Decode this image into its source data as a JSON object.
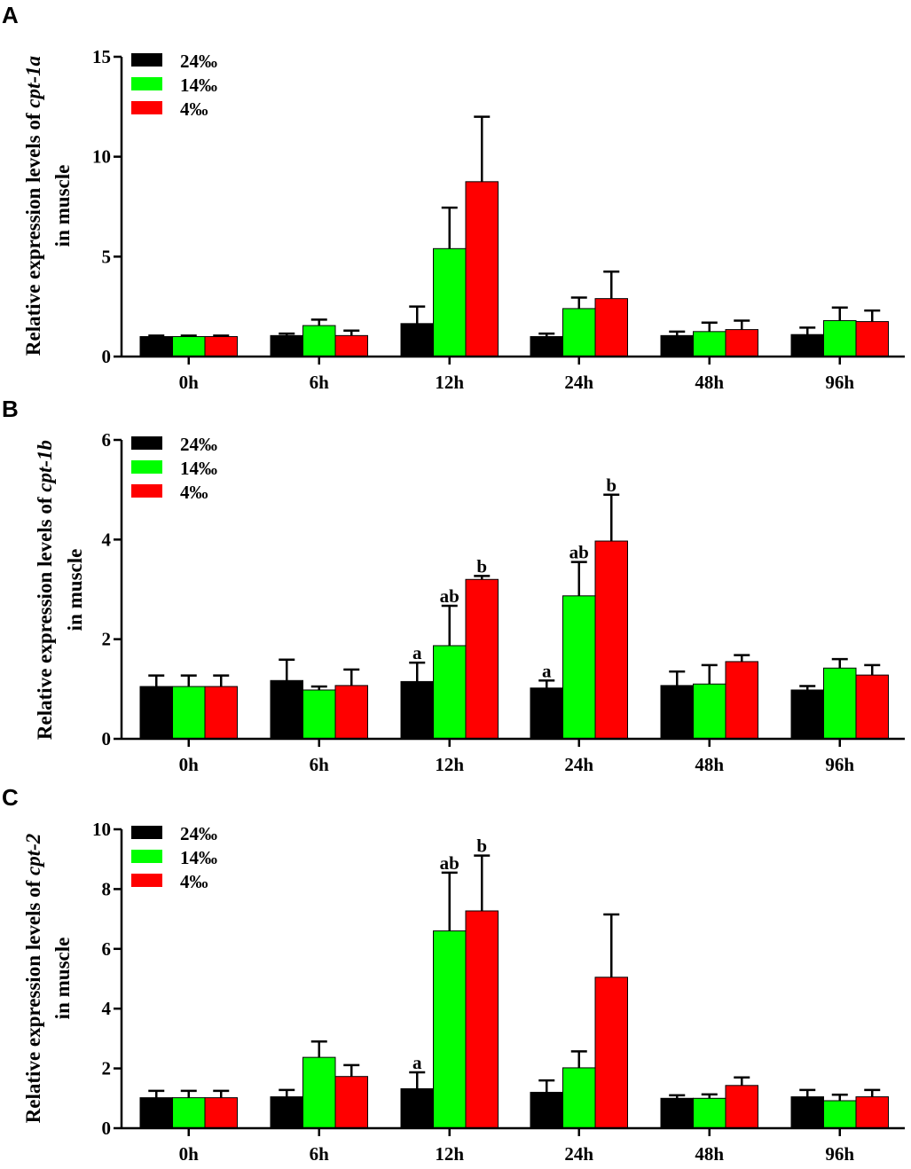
{
  "colors": {
    "24%o": "#000000",
    "14%o": "#00ff00",
    "4%o": "#ff0000",
    "axis": "#000000"
  },
  "chart_data": [
    {
      "panel": "A",
      "type": "bar",
      "ylabel_prefix": "Relative expression levels of ",
      "gene": "cpt-1a",
      "ylabel_line2": "in muscle",
      "ylim": [
        0,
        15
      ],
      "yticks": [
        0,
        5,
        10,
        15
      ],
      "categories": [
        "0h",
        "6h",
        "12h",
        "24h",
        "48h",
        "96h"
      ],
      "legend_position": "top-left",
      "series": [
        {
          "name": "24‰",
          "color": "#000000",
          "values": [
            1.0,
            1.05,
            1.65,
            1.0,
            1.05,
            1.1
          ],
          "errors": [
            0.05,
            0.1,
            0.85,
            0.15,
            0.2,
            0.35
          ],
          "labels": [
            "",
            "",
            "",
            "",
            "",
            ""
          ]
        },
        {
          "name": "14‰",
          "color": "#00ff00",
          "values": [
            1.0,
            1.55,
            5.4,
            2.4,
            1.25,
            1.8
          ],
          "errors": [
            0.05,
            0.3,
            2.05,
            0.55,
            0.45,
            0.65
          ],
          "labels": [
            "",
            "",
            "",
            "",
            "",
            ""
          ]
        },
        {
          "name": "4‰",
          "color": "#ff0000",
          "values": [
            1.0,
            1.05,
            8.75,
            2.9,
            1.35,
            1.75
          ],
          "errors": [
            0.05,
            0.25,
            3.25,
            1.35,
            0.45,
            0.55
          ],
          "labels": [
            "",
            "",
            "",
            "",
            "",
            ""
          ]
        }
      ]
    },
    {
      "panel": "B",
      "type": "bar",
      "ylabel_prefix": "Relative expression levels of ",
      "gene": "cpt-1b",
      "ylabel_line2": "in muscle",
      "ylim": [
        0,
        6
      ],
      "yticks": [
        0,
        2,
        4,
        6
      ],
      "categories": [
        "0h",
        "6h",
        "12h",
        "24h",
        "48h",
        "96h"
      ],
      "legend_position": "top-left",
      "series": [
        {
          "name": "24‰",
          "color": "#000000",
          "values": [
            1.05,
            1.17,
            1.15,
            1.02,
            1.07,
            0.98
          ],
          "errors": [
            0.22,
            0.42,
            0.38,
            0.15,
            0.28,
            0.08
          ],
          "labels": [
            "",
            "",
            "a",
            "a",
            "",
            ""
          ]
        },
        {
          "name": "14‰",
          "color": "#00ff00",
          "values": [
            1.05,
            0.98,
            1.87,
            2.87,
            1.1,
            1.42
          ],
          "errors": [
            0.22,
            0.07,
            0.8,
            0.68,
            0.38,
            0.18
          ],
          "labels": [
            "",
            "",
            "ab",
            "ab",
            "",
            ""
          ]
        },
        {
          "name": "4‰",
          "color": "#ff0000",
          "values": [
            1.05,
            1.07,
            3.2,
            3.97,
            1.55,
            1.28
          ],
          "errors": [
            0.22,
            0.32,
            0.07,
            0.93,
            0.13,
            0.2
          ],
          "labels": [
            "",
            "",
            "b",
            "b",
            "",
            ""
          ]
        }
      ]
    },
    {
      "panel": "C",
      "type": "bar",
      "ylabel_prefix": "Relative expression levels of ",
      "gene": "cpt-2",
      "ylabel_line2": "in muscle",
      "ylim": [
        0,
        10
      ],
      "yticks": [
        0,
        2,
        4,
        6,
        8,
        10
      ],
      "categories": [
        "0h",
        "6h",
        "12h",
        "24h",
        "48h",
        "96h"
      ],
      "legend_position": "top-left",
      "series": [
        {
          "name": "24‰",
          "color": "#000000",
          "values": [
            1.02,
            1.05,
            1.32,
            1.2,
            1.0,
            1.05
          ],
          "errors": [
            0.23,
            0.23,
            0.55,
            0.4,
            0.1,
            0.23
          ],
          "labels": [
            "",
            "",
            "a",
            "",
            "",
            ""
          ]
        },
        {
          "name": "14‰",
          "color": "#00ff00",
          "values": [
            1.02,
            2.37,
            6.6,
            2.02,
            1.0,
            0.92
          ],
          "errors": [
            0.23,
            0.53,
            1.95,
            0.55,
            0.13,
            0.2
          ],
          "labels": [
            "",
            "",
            "ab",
            "",
            "",
            ""
          ]
        },
        {
          "name": "4‰",
          "color": "#ff0000",
          "values": [
            1.02,
            1.73,
            7.27,
            5.05,
            1.43,
            1.05
          ],
          "errors": [
            0.23,
            0.38,
            1.85,
            2.1,
            0.27,
            0.23
          ],
          "labels": [
            "",
            "",
            "b",
            "",
            "",
            ""
          ]
        }
      ]
    }
  ]
}
